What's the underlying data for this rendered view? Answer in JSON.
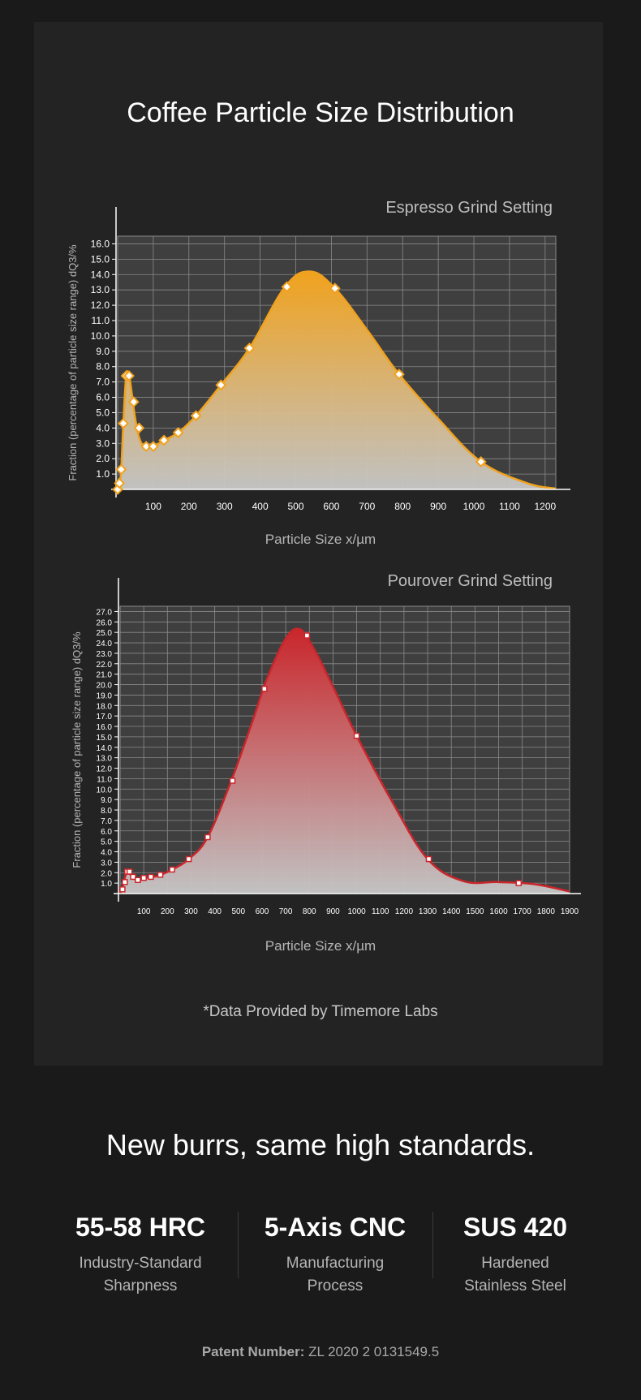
{
  "page": {
    "title": "Coffee Particle Size Distribution",
    "note": "*Data Provided by Timemore Labs",
    "slogan": "New burrs, same high standards.",
    "features": [
      {
        "value": "55-58 HRC",
        "line1": "Industry-Standard",
        "line2": "Sharpness"
      },
      {
        "value": "5-Axis CNC",
        "line1": "Manufacturing",
        "line2": "Process"
      },
      {
        "value": "SUS 420",
        "line1": "Hardened",
        "line2": "Stainless Steel"
      }
    ],
    "patent_label": "Patent Number:",
    "patent_value": "ZL 2020 2 0131549.5"
  },
  "colors": {
    "espresso": "#f0a21e",
    "pourover": "#c9262b",
    "plot_bg": "#3f3f3f",
    "grid": "#8a8a8a"
  },
  "chart_data": [
    {
      "type": "area",
      "title": "Espresso Grind Setting",
      "xlabel": "Particle Size x/µm",
      "ylabel": "Fraction (percentage of particle size range) dQ3/%",
      "xlim": [
        0,
        1230
      ],
      "ylim": [
        0,
        16.5
      ],
      "xticks": [
        100,
        200,
        300,
        400,
        500,
        600,
        700,
        800,
        900,
        1000,
        1100,
        1200
      ],
      "yticks": [
        1,
        2,
        3,
        4,
        5,
        6,
        7,
        8,
        9,
        10,
        11,
        12,
        13,
        14,
        15,
        16
      ],
      "marker": "diamond",
      "curve": [
        [
          0,
          0
        ],
        [
          5,
          0.3
        ],
        [
          10,
          1.3
        ],
        [
          16,
          4.3
        ],
        [
          24,
          7.4
        ],
        [
          32,
          7.4
        ],
        [
          40,
          6.2
        ],
        [
          48,
          4.8
        ],
        [
          60,
          3.4
        ],
        [
          75,
          2.8
        ],
        [
          100,
          2.8
        ],
        [
          130,
          3.2
        ],
        [
          170,
          3.7
        ],
        [
          220,
          4.8
        ],
        [
          290,
          6.8
        ],
        [
          370,
          9.2
        ],
        [
          470,
          13.2
        ],
        [
          540,
          14.2
        ],
        [
          610,
          13.1
        ],
        [
          700,
          10.4
        ],
        [
          790,
          7.5
        ],
        [
          900,
          4.6
        ],
        [
          1020,
          1.8
        ],
        [
          1150,
          0.4
        ],
        [
          1230,
          0.05
        ]
      ],
      "points": [
        [
          0,
          0
        ],
        [
          5,
          0.4
        ],
        [
          10,
          1.3
        ],
        [
          16,
          4.3
        ],
        [
          24,
          7.4
        ],
        [
          32,
          7.4
        ],
        [
          45,
          5.7
        ],
        [
          60,
          4.0
        ],
        [
          80,
          2.8
        ],
        [
          100,
          2.8
        ],
        [
          130,
          3.2
        ],
        [
          170,
          3.7
        ],
        [
          220,
          4.8
        ],
        [
          290,
          6.8
        ],
        [
          370,
          9.2
        ],
        [
          475,
          13.2
        ],
        [
          610,
          13.1
        ],
        [
          790,
          7.5
        ],
        [
          1020,
          1.8
        ]
      ]
    },
    {
      "type": "area",
      "title": "Pourover Grind Setting",
      "xlabel": "Particle Size x/µm",
      "ylabel": "Fraction (percentage of particle size range) dQ3/%",
      "xlim": [
        0,
        1900
      ],
      "ylim": [
        0,
        27.5
      ],
      "xticks": [
        100,
        200,
        300,
        400,
        500,
        600,
        700,
        800,
        900,
        1000,
        1100,
        1200,
        1300,
        1400,
        1500,
        1600,
        1700,
        1800,
        1900
      ],
      "yticks": [
        1,
        2,
        3,
        4,
        5,
        6,
        7,
        8,
        9,
        10,
        11,
        12,
        13,
        14,
        15,
        16,
        17,
        18,
        19,
        20,
        21,
        22,
        23,
        24,
        25,
        26,
        27
      ],
      "marker": "square",
      "curve": [
        [
          0,
          0
        ],
        [
          10,
          0.6
        ],
        [
          20,
          1.5
        ],
        [
          30,
          2.0
        ],
        [
          45,
          1.8
        ],
        [
          60,
          1.4
        ],
        [
          80,
          1.3
        ],
        [
          110,
          1.5
        ],
        [
          160,
          1.7
        ],
        [
          220,
          2.3
        ],
        [
          290,
          3.3
        ],
        [
          370,
          5.4
        ],
        [
          470,
          10.8
        ],
        [
          560,
          16.5
        ],
        [
          620,
          20.5
        ],
        [
          700,
          24.4
        ],
        [
          760,
          25.3
        ],
        [
          820,
          23.4
        ],
        [
          900,
          19.8
        ],
        [
          1000,
          15.1
        ],
        [
          1150,
          8.8
        ],
        [
          1300,
          3.3
        ],
        [
          1450,
          1.2
        ],
        [
          1600,
          1.1
        ],
        [
          1750,
          0.9
        ],
        [
          1900,
          0.2
        ]
      ],
      "points": [
        [
          10,
          0.4
        ],
        [
          20,
          1.1
        ],
        [
          30,
          2.1
        ],
        [
          40,
          2.1
        ],
        [
          55,
          1.6
        ],
        [
          75,
          1.3
        ],
        [
          100,
          1.5
        ],
        [
          130,
          1.6
        ],
        [
          170,
          1.8
        ],
        [
          220,
          2.3
        ],
        [
          290,
          3.3
        ],
        [
          370,
          5.4
        ],
        [
          475,
          10.8
        ],
        [
          610,
          19.6
        ],
        [
          790,
          24.7
        ],
        [
          1000,
          15.1
        ],
        [
          1305,
          3.3
        ],
        [
          1685,
          1.0
        ]
      ]
    }
  ]
}
